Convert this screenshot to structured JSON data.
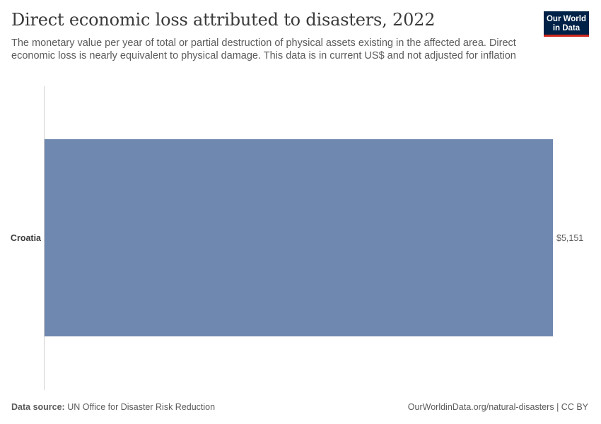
{
  "header": {
    "title": "Direct economic loss attributed to disasters, 2022",
    "subtitle": "The monetary value per year of total or partial destruction of physical assets existing in the affected area. Direct economic loss is nearly equivalent to physical damage. This data is in current US$ and not adjusted for inflation",
    "logo": "Our World\nin Data"
  },
  "footer": {
    "source_label": "Data source:",
    "source_text": "UN Office for Disaster Risk Reduction",
    "link": "OurWorldinData.org/natural-disasters | CC BY"
  },
  "colors": {
    "bar": "#6f88af",
    "axis": "#d0d0d0",
    "label": "#3a3a3a",
    "value": "#5b5b5b"
  },
  "chart_data": {
    "type": "bar",
    "orientation": "horizontal",
    "categories": [
      "Croatia"
    ],
    "values": [
      5151
    ],
    "value_labels": [
      "$5,151"
    ],
    "title": "Direct economic loss attributed to disasters, 2022",
    "xlabel": "",
    "ylabel": "",
    "xlim": [
      0,
      5151
    ],
    "grid": false,
    "legend": "none"
  }
}
